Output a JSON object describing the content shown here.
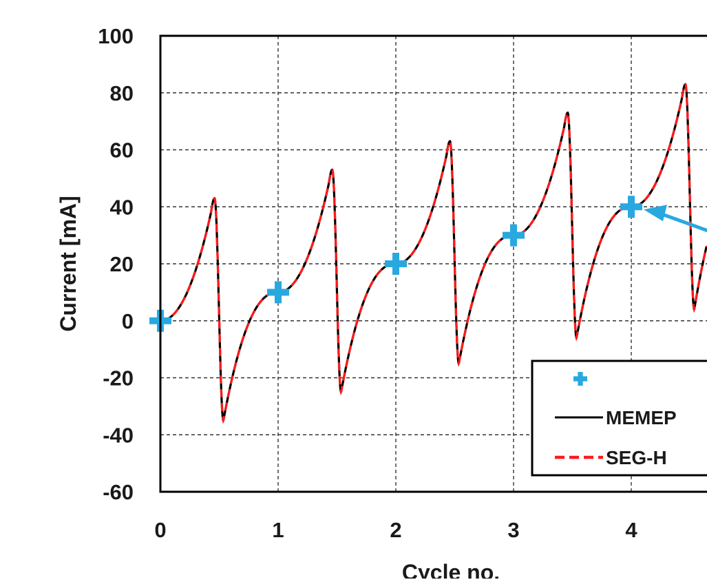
{
  "chart_data": {
    "type": "line",
    "xlabel": "Cycle no.",
    "ylabel": "Current [mA]",
    "xlim": [
      0,
      4.64
    ],
    "ylim": [
      -60,
      100
    ],
    "x_ticks": [
      0,
      1,
      2,
      3,
      4
    ],
    "x_tick_labels": [
      "0",
      "1",
      "2",
      "3",
      "4"
    ],
    "y_ticks": [
      -60,
      -40,
      -20,
      0,
      20,
      40,
      60,
      80,
      100
    ],
    "y_tick_labels": [
      "-60",
      "-40",
      "-20",
      "0",
      "20",
      "40",
      "60",
      "80",
      "100"
    ],
    "grid": true,
    "legend": {
      "location": "bottom-right",
      "entries": [
        "",
        "MEMEP",
        "SEG-H"
      ]
    },
    "series": [
      {
        "name": "",
        "kind": "markers",
        "marker": "plus",
        "color": "#29a8e0",
        "x": [
          0,
          1,
          2,
          3,
          4
        ],
        "y": [
          0,
          10,
          20,
          30,
          40
        ]
      },
      {
        "name": "MEMEP",
        "kind": "line",
        "color": "#000000",
        "dash": "solid",
        "peaks_per_cycle": [
          {
            "cycle": 0,
            "max": 43,
            "min": -35
          },
          {
            "cycle": 1,
            "max": 53,
            "min": -25
          },
          {
            "cycle": 2,
            "max": 63,
            "min": -15
          },
          {
            "cycle": 3,
            "max": 73,
            "min": -6
          },
          {
            "cycle": 4,
            "max": 83,
            "min": 4
          }
        ]
      },
      {
        "name": "SEG-H",
        "kind": "line",
        "color": "#ff1a1a",
        "dash": "dashed",
        "peaks_per_cycle": [
          {
            "cycle": 0,
            "max": 43,
            "min": -35
          },
          {
            "cycle": 1,
            "max": 53,
            "min": -25
          },
          {
            "cycle": 2,
            "max": 63,
            "min": -15
          },
          {
            "cycle": 3,
            "max": 73,
            "min": -6
          },
          {
            "cycle": 4,
            "max": 83,
            "min": 4
          }
        ]
      }
    ],
    "annotation_arrow": {
      "color": "#29a8e0",
      "points_to": {
        "x": 4,
        "y": 40
      }
    }
  }
}
